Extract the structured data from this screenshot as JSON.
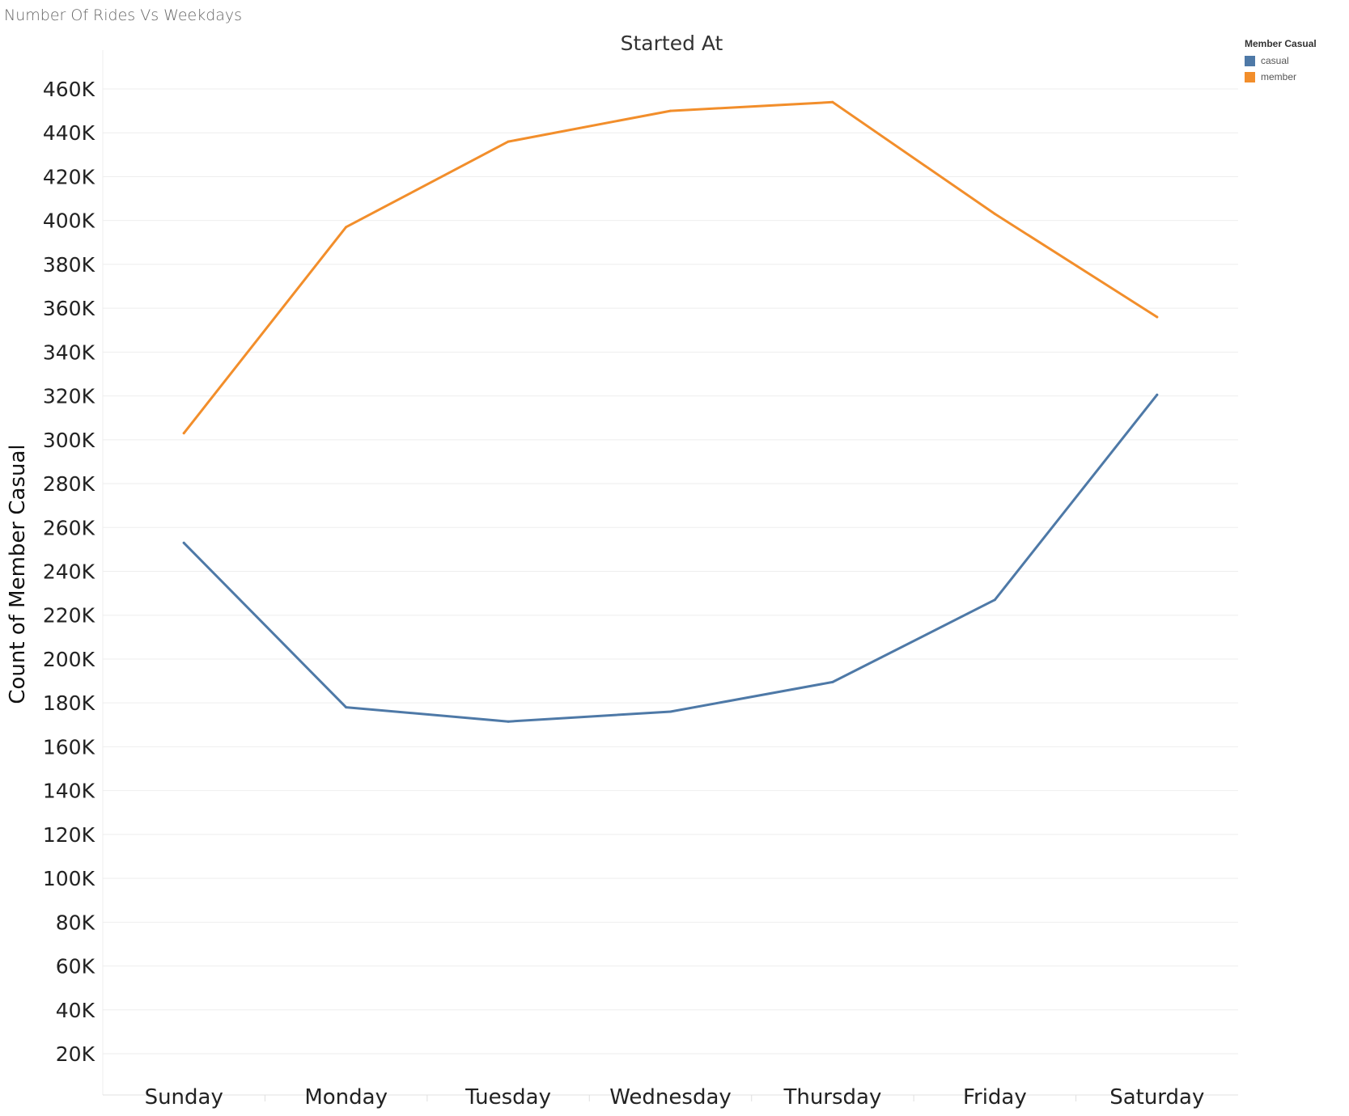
{
  "sheet_title": "Number Of Rides Vs Weekdays",
  "legend": {
    "title": "Member Casual",
    "items": [
      {
        "label": "casual",
        "color": "#4e79a7"
      },
      {
        "label": "member",
        "color": "#f28e2b"
      }
    ]
  },
  "chart_data": {
    "type": "line",
    "title": "Started At",
    "xlabel": "",
    "ylabel": "Count of Member Casual",
    "categories": [
      "Sunday",
      "Monday",
      "Tuesday",
      "Wednesday",
      "Thursday",
      "Friday",
      "Saturday"
    ],
    "ylim": [
      0,
      460000
    ],
    "yticks": [
      20000,
      40000,
      60000,
      80000,
      100000,
      120000,
      140000,
      160000,
      180000,
      200000,
      220000,
      240000,
      260000,
      280000,
      300000,
      320000,
      340000,
      360000,
      380000,
      400000,
      420000,
      440000,
      460000
    ],
    "ytick_labels": [
      "20K",
      "40K",
      "60K",
      "80K",
      "100K",
      "120K",
      "140K",
      "160K",
      "180K",
      "200K",
      "220K",
      "240K",
      "260K",
      "280K",
      "300K",
      "320K",
      "340K",
      "360K",
      "380K",
      "400K",
      "420K",
      "440K",
      "460K"
    ],
    "grid": true,
    "legend_position": "top-right",
    "series": [
      {
        "name": "casual",
        "color": "#4e79a7",
        "values": [
          253000,
          178000,
          171500,
          176000,
          189500,
          227000,
          320500
        ]
      },
      {
        "name": "member",
        "color": "#f28e2b",
        "values": [
          303000,
          397000,
          436000,
          450000,
          454000,
          403000,
          356000
        ]
      }
    ]
  }
}
